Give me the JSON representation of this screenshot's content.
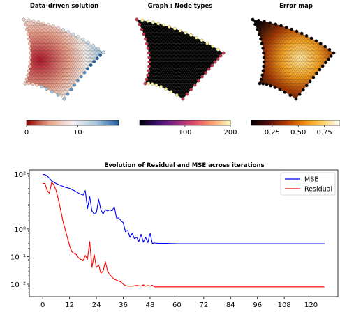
{
  "panels": [
    {
      "title": "Data-driven solution",
      "cmap": [
        "#8b0000",
        "#e8a48a",
        "#f7f2f0",
        "#a7c8e0",
        "#1f5c99"
      ],
      "range": [
        0,
        18
      ],
      "ticks": [
        {
          "v": 0,
          "label": "0"
        },
        {
          "v": 10,
          "label": "10"
        }
      ]
    },
    {
      "title": "Graph : Node types",
      "cmap": [
        "#000004",
        "#3b0f70",
        "#8c2981",
        "#de4968",
        "#fe9f6d",
        "#fcfdbf"
      ],
      "range": [
        0,
        200
      ],
      "ticks": [
        {
          "v": 100,
          "label": "100"
        },
        {
          "v": 200,
          "label": "200"
        }
      ]
    },
    {
      "title": "Error map",
      "cmap": [
        "#000000",
        "#560e0e",
        "#b03c00",
        "#f28c10",
        "#ffd060",
        "#ffffff"
      ],
      "range": [
        0.05,
        0.9
      ],
      "ticks": [
        {
          "v": 0.25,
          "label": "0.25"
        },
        {
          "v": 0.5,
          "label": "0.50"
        },
        {
          "v": 0.75,
          "label": "0.75"
        }
      ]
    }
  ],
  "chart_data": {
    "type": "line",
    "title": "Evolution of Residual and MSE across iterations",
    "xlabel": "",
    "ylabel": "",
    "yscale": "log",
    "xlim": [
      -6,
      132
    ],
    "ylim": [
      0.0035,
      140
    ],
    "xticks": [
      0,
      12,
      24,
      36,
      48,
      60,
      72,
      84,
      96,
      108,
      120
    ],
    "yticks": [
      {
        "v": 0.01,
        "label": "10⁻²"
      },
      {
        "v": 0.1,
        "label": "10⁻¹"
      },
      {
        "v": 1,
        "label": "10⁰"
      },
      {
        "v": 100,
        "label": "10²"
      }
    ],
    "legend_position": "top-right",
    "grid": false,
    "series": [
      {
        "name": "MSE",
        "color": "#0000ff",
        "x": [
          0,
          1,
          2,
          3,
          4,
          6,
          8,
          10,
          12,
          14,
          16,
          18,
          19,
          20,
          21,
          22,
          23,
          24,
          25,
          26,
          27,
          28,
          29,
          30,
          31,
          32,
          33,
          34,
          35,
          36,
          37,
          38,
          39,
          40,
          41,
          42,
          43,
          44,
          45,
          46,
          47,
          48,
          49,
          50,
          52,
          55,
          60,
          70,
          80,
          90,
          100,
          110,
          120,
          126
        ],
        "y": [
          95,
          95,
          85,
          70,
          55,
          45,
          38,
          33,
          30,
          25,
          20,
          17,
          25,
          5.5,
          15,
          4.5,
          3.5,
          4,
          12,
          5,
          3.5,
          5,
          4.5,
          5,
          4.5,
          6.5,
          2.5,
          2.5,
          2,
          1.7,
          0.8,
          0.9,
          0.5,
          0.7,
          0.45,
          0.5,
          0.35,
          0.65,
          0.33,
          0.5,
          0.32,
          0.7,
          0.3,
          0.31,
          0.3,
          0.3,
          0.29,
          0.29,
          0.29,
          0.29,
          0.29,
          0.29,
          0.29,
          0.29
        ]
      },
      {
        "name": "Residual",
        "color": "#ff0000",
        "x": [
          0,
          1,
          2,
          3,
          4,
          5,
          6,
          7,
          8,
          9,
          10,
          11,
          12,
          13,
          14,
          15,
          16,
          17,
          18,
          19,
          20,
          21,
          22,
          23,
          24,
          25,
          26,
          27,
          28,
          29,
          30,
          31,
          32,
          33,
          34,
          35,
          36,
          37,
          38,
          40,
          42,
          44,
          45,
          46,
          47,
          48,
          49,
          50,
          55,
          60,
          70,
          80,
          90,
          100,
          110,
          120,
          126
        ],
        "y": [
          45,
          45,
          25,
          20,
          50,
          40,
          25,
          12,
          5,
          2,
          1,
          0.5,
          0.25,
          0.15,
          0.13,
          0.12,
          0.09,
          0.08,
          0.07,
          0.11,
          0.08,
          0.35,
          0.04,
          0.12,
          0.04,
          0.05,
          0.025,
          0.03,
          0.065,
          0.03,
          0.022,
          0.018,
          0.015,
          0.014,
          0.013,
          0.012,
          0.01,
          0.009,
          0.0085,
          0.0085,
          0.009,
          0.0085,
          0.0095,
          0.0085,
          0.009,
          0.0085,
          0.0092,
          0.008,
          0.008,
          0.008,
          0.008,
          0.008,
          0.008,
          0.008,
          0.008,
          0.008,
          0.008
        ]
      }
    ]
  }
}
